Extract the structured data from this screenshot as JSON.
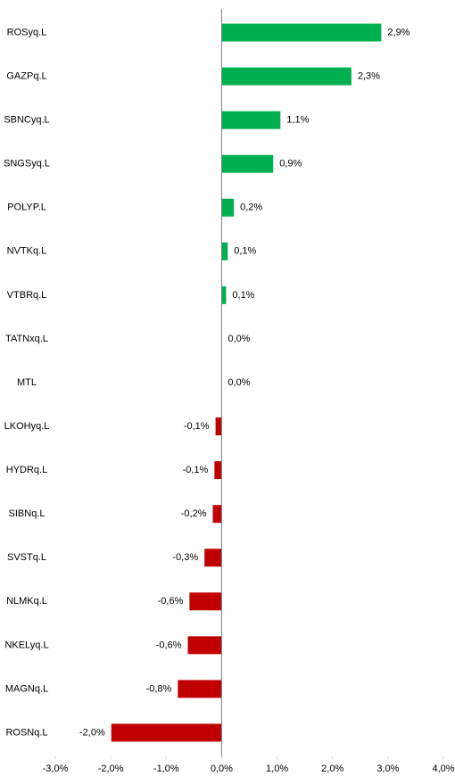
{
  "chart_data": {
    "type": "bar",
    "orientation": "horizontal",
    "categories": [
      "ROSyq.L",
      "GAZPq.L",
      "SBNCyq.L",
      "SNGSyq.L",
      "POLYP.L",
      "NVTKq.L",
      "VTBRq.L",
      "TATNxq.L",
      "MTL",
      "LKOHyq.L",
      "HYDRq.L",
      "SIBNq.L",
      "SVSTq.L",
      "NLMKq.L",
      "NKELyq.L",
      "MAGNq.L",
      "ROSNq.L"
    ],
    "values": [
      2.88,
      2.34,
      1.06,
      0.93,
      0.22,
      0.11,
      0.08,
      0.0,
      0.0,
      -0.11,
      -0.13,
      -0.16,
      -0.31,
      -0.58,
      -0.61,
      -0.79,
      -1.99
    ],
    "value_labels": [
      "2,9%",
      "2,3%",
      "1,1%",
      "0,9%",
      "0,2%",
      "0,1%",
      "0,1%",
      "0,0%",
      "0,0%",
      "-0,1%",
      "-0,1%",
      "-0,2%",
      "-0,3%",
      "-0,6%",
      "-0,6%",
      "-0,8%",
      "-2,0%"
    ],
    "positive_color": "#00b050",
    "negative_color": "#c00000",
    "xlim": [
      -3,
      4
    ],
    "xticks": [
      {
        "value": -3,
        "label": "-3,0%"
      },
      {
        "value": -2,
        "label": "-2,0%"
      },
      {
        "value": -1,
        "label": "-1,0%"
      },
      {
        "value": 0,
        "label": "0,0%"
      },
      {
        "value": 1,
        "label": "1,0%"
      },
      {
        "value": 2,
        "label": "2,0%"
      },
      {
        "value": 3,
        "label": "3,0%"
      },
      {
        "value": 4,
        "label": "4,0%"
      }
    ],
    "grid": false
  }
}
